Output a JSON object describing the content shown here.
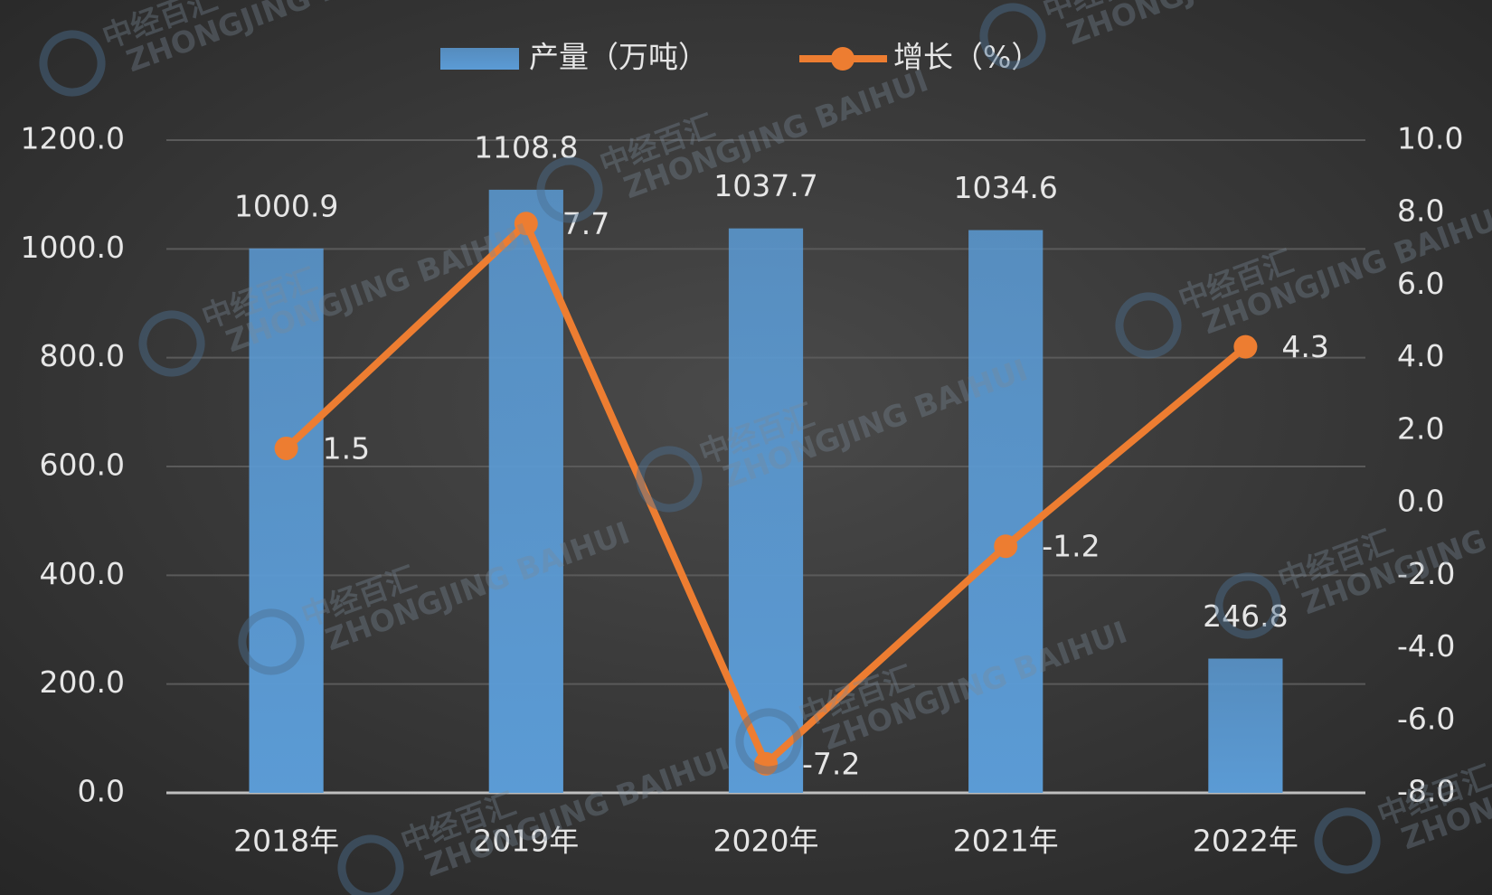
{
  "chart_data": {
    "type": "combo",
    "categories": [
      "2018年",
      "2019年",
      "2020年",
      "2021年",
      "2022年"
    ],
    "series": [
      {
        "name": "产量（万吨）",
        "type": "bar",
        "color": "#5b9bd5",
        "values": [
          1000.9,
          1108.8,
          1037.7,
          1034.6,
          246.8
        ]
      },
      {
        "name": "增长（%）",
        "type": "line",
        "color": "#ed7d31",
        "axis": "y2",
        "values": [
          1.5,
          7.7,
          -7.2,
          -1.2,
          4.3
        ]
      }
    ],
    "ylim": [
      0,
      1200
    ],
    "yticks": [
      {
        "value": 0,
        "label": "0.0"
      },
      {
        "value": 200,
        "label": "200.0"
      },
      {
        "value": 400,
        "label": "400.0"
      },
      {
        "value": 600,
        "label": "600.0"
      },
      {
        "value": 800,
        "label": "800.0"
      },
      {
        "value": 1000,
        "label": "1000.0"
      },
      {
        "value": 1200,
        "label": "1200.0"
      }
    ],
    "y2lim": [
      -8,
      10
    ],
    "y2ticks": [
      {
        "value": -8,
        "label": "-8.0"
      },
      {
        "value": -6,
        "label": "-6.0"
      },
      {
        "value": -4,
        "label": "-4.0"
      },
      {
        "value": -2,
        "label": "-2.0"
      },
      {
        "value": 0,
        "label": "0.0"
      },
      {
        "value": 2,
        "label": "2.0"
      },
      {
        "value": 4,
        "label": "4.0"
      },
      {
        "value": 6,
        "label": "6.0"
      },
      {
        "value": 8,
        "label": "8.0"
      },
      {
        "value": 10,
        "label": "10.0"
      }
    ],
    "grid": true,
    "legend": "top",
    "watermark": {
      "text": "中经百汇",
      "subtext": "ZHONGJING BAIHUI"
    }
  }
}
